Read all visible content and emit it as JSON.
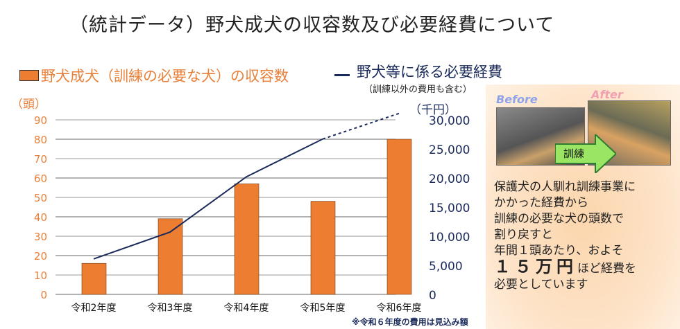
{
  "title": "（統計データ）野犬成犬の収容数及び必要経費について",
  "legend": {
    "bar": "野犬成犬（訓練の必要な犬）の収容数",
    "line": "野犬等に係る必要経費",
    "line_sub": "（訓練以外の費用も含む）"
  },
  "note": "※令和６年度の費用は見込み額",
  "colors": {
    "bar": "#ed7d31",
    "line": "#1a2a5a"
  },
  "chart_data": {
    "type": "bar+line",
    "title": "（統計データ）野犬成犬の収容数及び必要経費について",
    "categories": [
      "令和2年度",
      "令和3年度",
      "令和4年度",
      "令和5年度",
      "令和6年度"
    ],
    "series": [
      {
        "name": "野犬成犬（訓練の必要な犬）の収容数",
        "type": "bar",
        "axis": "left",
        "values": [
          16,
          39,
          57,
          48,
          80
        ]
      },
      {
        "name": "野犬等に係る必要経費",
        "type": "line",
        "axis": "right",
        "values": [
          6100,
          10700,
          20200,
          26700,
          31100
        ],
        "dashed_from_index": 3
      }
    ],
    "ylabel": "（頭）",
    "y2label": "（千円）",
    "ylim": [
      0,
      90
    ],
    "yticks": [
      0,
      10,
      20,
      30,
      40,
      50,
      60,
      70,
      80,
      90
    ],
    "y2lim": [
      0,
      30000
    ],
    "y2ticks": [
      "0",
      "5,000",
      "10,000",
      "15,000",
      "20,000",
      "25,000",
      "30,000"
    ],
    "grid": true,
    "legend_placement": "top"
  },
  "panel": {
    "before": "Before",
    "after": "After",
    "arrow": "訓練",
    "lines": [
      "保護犬の人馴れ訓練事業に",
      "かかった経費から",
      "訓練の必要な犬の頭数で",
      "割り戻すと",
      "年間１頭あたり、およそ"
    ],
    "amount": "１５万円",
    "amount_suffix": "ほど経費を",
    "last": "必要としています"
  }
}
